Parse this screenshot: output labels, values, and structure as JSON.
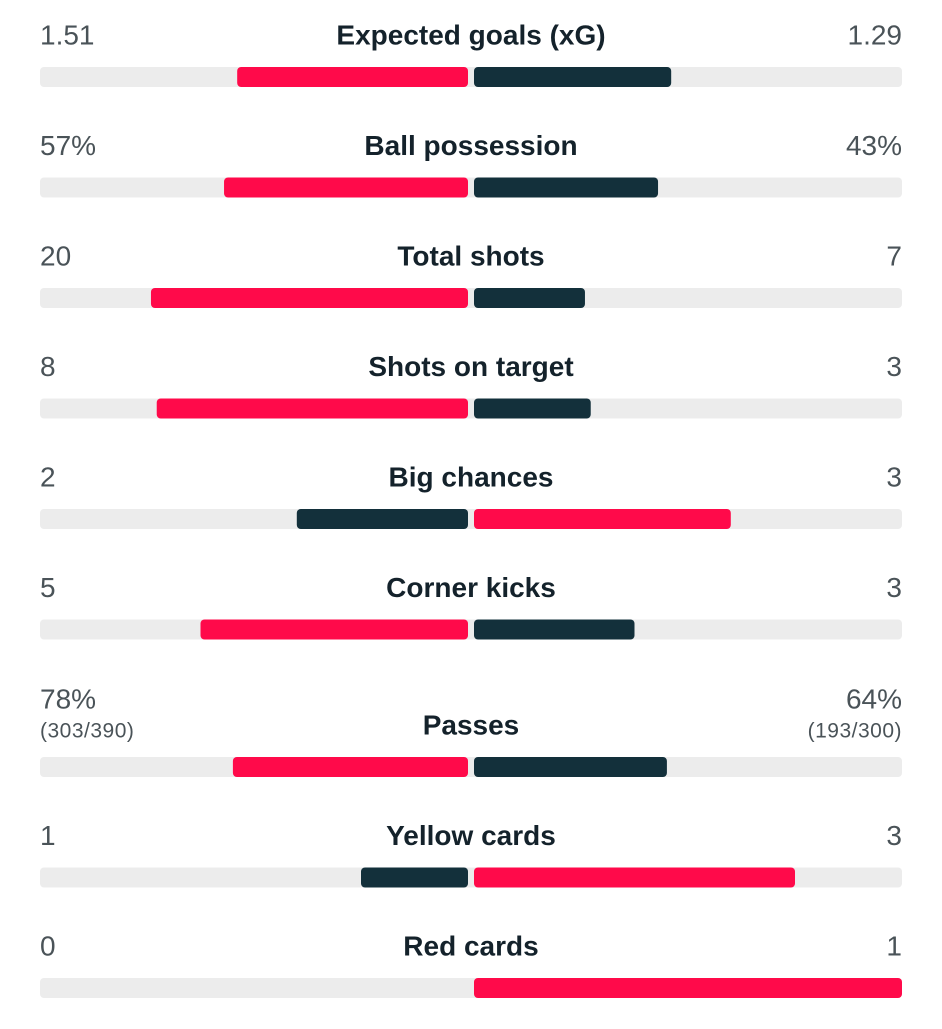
{
  "stats": [
    {
      "label": "Expected goals (xG)",
      "home": 1.51,
      "away": 1.29
    },
    {
      "label": "Ball possession",
      "home": 57,
      "home_label": "57%",
      "away": 43,
      "away_label": "43%"
    },
    {
      "label": "Total shots",
      "home": 20,
      "away": 7
    },
    {
      "label": "Shots on target",
      "home": 8,
      "away": 3
    },
    {
      "label": "Big chances",
      "home": 2,
      "away": 3
    },
    {
      "label": "Corner kicks",
      "home": 5,
      "away": 3
    },
    {
      "label": "Passes",
      "home": 78,
      "home_label": "78%",
      "home_detail": "(303/390)",
      "away": 64,
      "away_label": "64%",
      "away_detail": "(193/300)"
    },
    {
      "label": "Yellow cards",
      "home": 1,
      "away": 3
    },
    {
      "label": "Red cards",
      "home": 0,
      "away": 1
    }
  ]
}
